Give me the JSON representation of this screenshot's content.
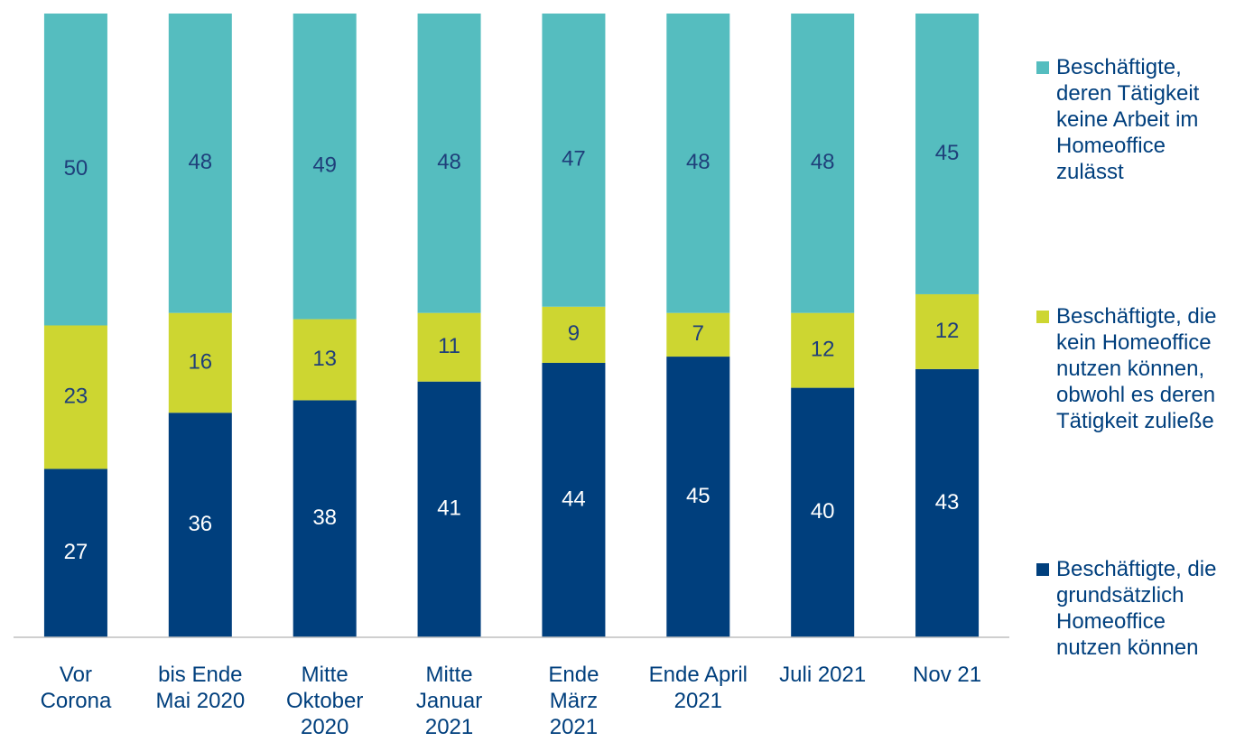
{
  "chart_data": {
    "type": "stacked_bar",
    "categories": [
      "Vor\nCorona",
      "bis Ende\nMai 2020",
      "Mitte\nOktober\n2020",
      "Mitte\nJanuar\n2021",
      "Ende\nMärz\n2021",
      "Ende April\n2021",
      "Juli 2021",
      "Nov 21"
    ],
    "series": [
      {
        "name": "Beschäftigte, die\ngrundsätzlich\nHomeoffice\nnutzen können",
        "color": "#003f7d",
        "label_color": "#ffffff",
        "values": [
          27,
          36,
          38,
          41,
          44,
          45,
          40,
          43
        ]
      },
      {
        "name": "Beschäftigte, die\nkein Homeoffice\nnutzen können,\nobwohl es deren\nTätigkeit zuließe",
        "color": "#cdd631",
        "label_color": "#1f3f7a",
        "values": [
          23,
          16,
          13,
          11,
          9,
          7,
          12,
          12
        ]
      },
      {
        "name": "Beschäftigte,\nderen Tätigkeit\nkeine Arbeit im\nHomeoffice\nzulässt",
        "color": "#55bdbf",
        "label_color": "#1f3f7a",
        "values": [
          50,
          48,
          49,
          48,
          47,
          48,
          48,
          45
        ]
      }
    ],
    "ylim": [
      0,
      100
    ]
  }
}
